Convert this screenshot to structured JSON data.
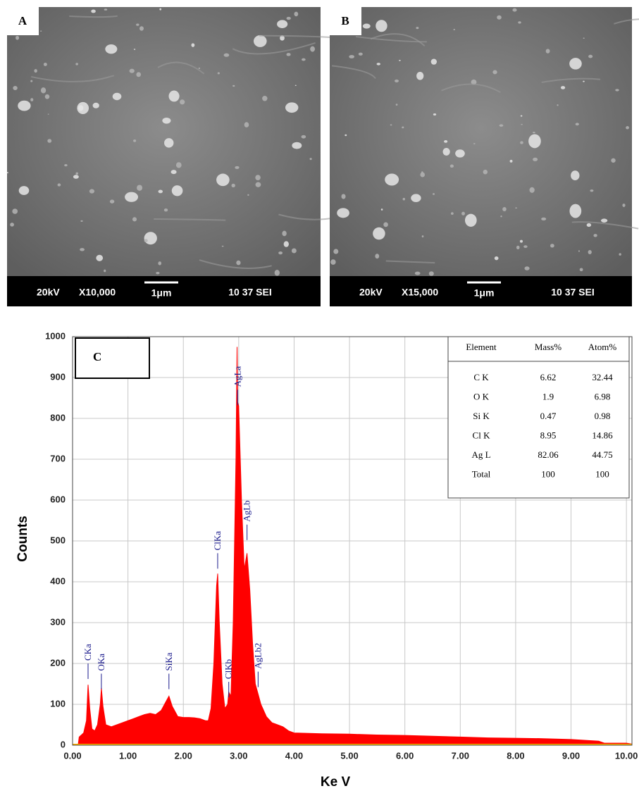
{
  "panels": [
    {
      "label": "A",
      "voltage": "20kV",
      "magnification": "X10,000",
      "scale": "1μm",
      "info": "10 37 SEI"
    },
    {
      "label": "B",
      "voltage": "20kV",
      "magnification": "X15,000",
      "scale": "1μm",
      "info": "10 37 SEI"
    }
  ],
  "chart_data": {
    "type": "area",
    "label": "C",
    "xlabel": "Ke V",
    "ylabel": "Counts",
    "color": "#ff0000",
    "x": [
      0.1,
      0.12,
      0.2,
      0.25,
      0.28,
      0.31,
      0.35,
      0.4,
      0.45,
      0.5,
      0.52,
      0.55,
      0.6,
      0.7,
      0.8,
      0.9,
      1.0,
      1.1,
      1.2,
      1.3,
      1.4,
      1.5,
      1.6,
      1.7,
      1.74,
      1.8,
      1.9,
      2.0,
      2.1,
      2.2,
      2.3,
      2.4,
      2.45,
      2.5,
      2.55,
      2.6,
      2.62,
      2.65,
      2.7,
      2.75,
      2.8,
      2.82,
      2.86,
      2.9,
      2.95,
      2.97,
      2.98,
      3.0,
      3.05,
      3.1,
      3.15,
      3.2,
      3.25,
      3.3,
      3.35,
      3.4,
      3.5,
      3.6,
      3.7,
      3.8,
      3.9,
      4.0,
      4.5,
      5.0,
      5.5,
      6.0,
      6.5,
      7.0,
      7.5,
      8.0,
      8.5,
      9.0,
      9.5,
      9.6,
      10.0,
      10.1
    ],
    "values": [
      0,
      20,
      30,
      60,
      148,
      90,
      40,
      35,
      50,
      100,
      140,
      95,
      50,
      45,
      50,
      55,
      60,
      65,
      70,
      75,
      78,
      75,
      85,
      110,
      120,
      95,
      70,
      68,
      68,
      67,
      65,
      60,
      60,
      90,
      200,
      390,
      420,
      300,
      150,
      90,
      100,
      130,
      120,
      300,
      700,
      975,
      840,
      830,
      600,
      430,
      470,
      380,
      250,
      150,
      125,
      100,
      70,
      55,
      50,
      45,
      35,
      30,
      28,
      27,
      25,
      24,
      22,
      20,
      18,
      17,
      16,
      14,
      10,
      5,
      5,
      3
    ],
    "xlim": [
      0,
      10.1
    ],
    "ylim": [
      0,
      1000
    ],
    "xticks": [
      {
        "value": 0,
        "label": "0.00"
      },
      {
        "value": 1,
        "label": "1.00"
      },
      {
        "value": 2,
        "label": "2.00"
      },
      {
        "value": 3,
        "label": "3.00"
      },
      {
        "value": 4,
        "label": "4.00"
      },
      {
        "value": 5,
        "label": "5.00"
      },
      {
        "value": 6,
        "label": "6.00"
      },
      {
        "value": 7,
        "label": "7.00"
      },
      {
        "value": 8,
        "label": "8.00"
      },
      {
        "value": 9,
        "label": "9.00"
      },
      {
        "value": 10,
        "label": "10.00"
      }
    ],
    "yticks": [
      0,
      100,
      200,
      300,
      400,
      500,
      600,
      700,
      800,
      900,
      1000
    ],
    "grid": true,
    "annotations": [
      {
        "text": "CKa",
        "x": 0.28,
        "y": 200
      },
      {
        "text": "OKa",
        "x": 0.52,
        "y": 175
      },
      {
        "text": "SiKa",
        "x": 1.74,
        "y": 175
      },
      {
        "text": "ClKa",
        "x": 2.62,
        "y": 470
      },
      {
        "text": "ClKb",
        "x": 2.82,
        "y": 155
      },
      {
        "text": "AgLa",
        "x": 2.98,
        "y": 870
      },
      {
        "text": "AgLb",
        "x": 3.15,
        "y": 540
      },
      {
        "text": "AgLb2",
        "x": 3.35,
        "y": 180
      }
    ],
    "table": {
      "columns": [
        "Element",
        "Mass%",
        "Atom%"
      ],
      "rows": [
        [
          "C K",
          6.62,
          32.44
        ],
        [
          "O K",
          1.9,
          6.98
        ],
        [
          "Si K",
          0.47,
          0.98
        ],
        [
          "Cl K",
          8.95,
          14.86
        ],
        [
          "Ag L",
          82.06,
          44.75
        ],
        [
          "Total",
          100,
          100
        ]
      ]
    }
  }
}
